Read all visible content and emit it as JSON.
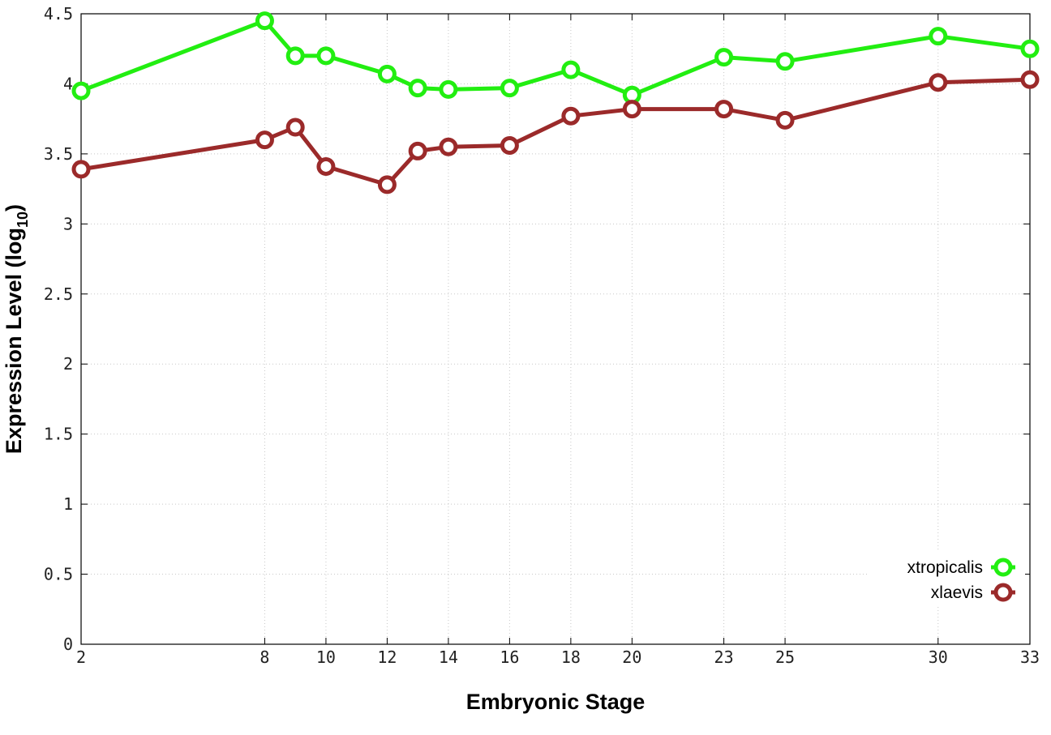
{
  "chart_data": {
    "type": "line",
    "xlabel": "Embryonic Stage",
    "ylabel_main": "Expression Level (log",
    "ylabel_sub": "10",
    "ylabel_close": ")",
    "xlim": [
      2,
      33
    ],
    "ylim": [
      0,
      4.5
    ],
    "x_ticks": [
      2,
      8,
      10,
      12,
      14,
      16,
      18,
      20,
      23,
      25,
      30,
      33
    ],
    "y_ticks": [
      0,
      0.5,
      1,
      1.5,
      2,
      2.5,
      3,
      3.5,
      4,
      4.5
    ],
    "y_tick_labels": [
      "0",
      "0.5",
      "1",
      "1.5",
      "2",
      "2.5",
      "3",
      "3.5",
      "4",
      "4.5"
    ],
    "grid": true,
    "legend_position": "bottom-right",
    "x": [
      2,
      8,
      9,
      10,
      12,
      13,
      14,
      16,
      18,
      20,
      23,
      25,
      30,
      33
    ],
    "series": [
      {
        "name": "xtropicalis",
        "color": "#22ee11",
        "values": [
          3.95,
          4.45,
          4.2,
          4.2,
          4.07,
          3.97,
          3.96,
          3.97,
          4.1,
          3.92,
          4.19,
          4.16,
          4.34,
          4.25
        ]
      },
      {
        "name": "xlaevis",
        "color": "#9b2a2a",
        "values": [
          3.39,
          3.6,
          3.69,
          3.41,
          3.28,
          3.52,
          3.55,
          3.56,
          3.77,
          3.82,
          3.82,
          3.74,
          4.01,
          4.03
        ]
      }
    ]
  }
}
